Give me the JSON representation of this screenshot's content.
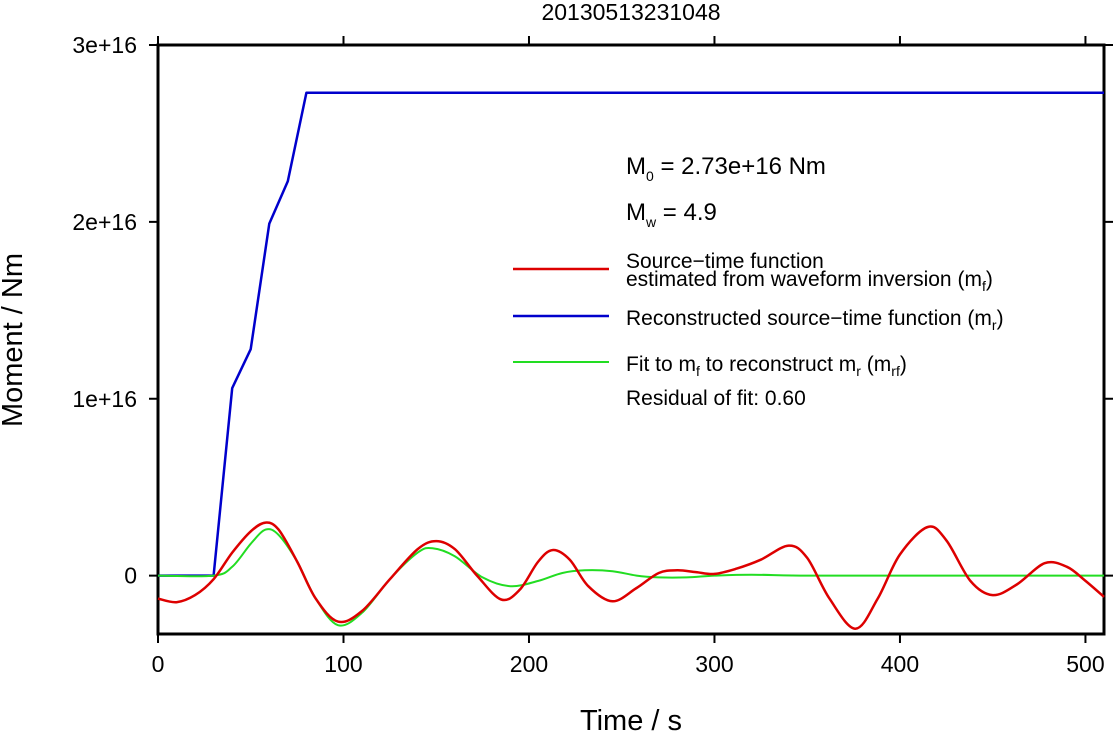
{
  "chart_data": {
    "type": "line",
    "title": "20130513231048",
    "xlabel": "Time / s",
    "ylabel": "Moment / Nm",
    "xlim": [
      0,
      510
    ],
    "ylim": [
      -3300000000000000.0,
      3e+16
    ],
    "x_ticks": [
      0,
      100,
      200,
      300,
      400,
      500
    ],
    "x_tick_labels": [
      "0",
      "100",
      "200",
      "300",
      "400",
      "500"
    ],
    "y_ticks": [
      0,
      1e+16,
      2e+16,
      3e+16
    ],
    "y_tick_labels": [
      "0",
      "1e+16",
      "2e+16",
      "3e+16"
    ],
    "grid": false,
    "legend_position": "right",
    "annotations": {
      "m0": {
        "lead": "M",
        "sub": "0",
        "rest": " = 2.73e+16 Nm"
      },
      "mw": {
        "lead": "M",
        "sub": "w",
        "rest": " = 4.9"
      },
      "residual": "Residual of fit: 0.60"
    },
    "legend": [
      {
        "key": "mf",
        "color": "#dd0000",
        "line1": "Source−time function",
        "line2": "estimated from waveform inversion (m",
        "sub": "f",
        "tail": ")"
      },
      {
        "key": "mr",
        "color": "#0000cc",
        "line1": "Reconstructed source−time function (m",
        "sub": "r",
        "tail": ")"
      },
      {
        "key": "mrf",
        "color": "#22dd22",
        "line1a": "Fit to m",
        "sub1": "f",
        "line1b": " to reconstruct m",
        "sub2": "r",
        "line1c": " (m",
        "sub3": "rf",
        "tail": ")"
      }
    ],
    "series": [
      {
        "key": "mr",
        "color": "#0000cc",
        "x": [
          0,
          30,
          40,
          50,
          60,
          70,
          80,
          510
        ],
        "y": [
          0,
          0,
          1.06e+16,
          1.28e+16,
          1.99e+16,
          2.23e+16,
          2.73e+16,
          2.73e+16
        ]
      },
      {
        "key": "mf",
        "color": "#dd0000",
        "x": [
          0,
          10,
          20,
          30,
          40,
          50,
          58,
          65,
          75,
          85,
          97,
          110,
          125,
          140,
          150,
          160,
          172,
          185,
          195,
          205,
          213,
          222,
          232,
          245,
          258,
          270,
          280,
          290,
          300,
          312,
          325,
          340,
          350,
          362,
          376,
          388,
          400,
          415,
          425,
          438,
          450,
          463,
          478,
          490,
          500,
          510
        ],
        "y": [
          -1300000000000000.0,
          -1500000000000000.0,
          -1100000000000000.0,
          -200000000000000.0,
          1300000000000000.0,
          2500000000000000.0,
          3000000000000000.0,
          2600000000000000.0,
          800000000000000.0,
          -1300000000000000.0,
          -2600000000000000.0,
          -2000000000000000.0,
          -200000000000000.0,
          1500000000000000.0,
          1950000000000000.0,
          1500000000000000.0,
          0,
          -1350000000000000.0,
          -800000000000000.0,
          800000000000000.0,
          1450000000000000.0,
          900000000000000.0,
          -600000000000000.0,
          -1450000000000000.0,
          -700000000000000.0,
          150000000000000.0,
          300000000000000.0,
          200000000000000.0,
          100000000000000.0,
          400000000000000.0,
          900000000000000.0,
          1700000000000000.0,
          1000000000000000.0,
          -1300000000000000.0,
          -3000000000000000.0,
          -1300000000000000.0,
          1200000000000000.0,
          2750000000000000.0,
          2000000000000000.0,
          -300000000000000.0,
          -1100000000000000.0,
          -500000000000000.0,
          700000000000000.0,
          500000000000000.0,
          -300000000000000.0,
          -1200000000000000.0
        ]
      },
      {
        "key": "mrf",
        "color": "#22dd22",
        "x": [
          0,
          30,
          40,
          50,
          58,
          65,
          75,
          85,
          97,
          110,
          125,
          140,
          148,
          160,
          175,
          190,
          205,
          218,
          230,
          245,
          258,
          270,
          285,
          300,
          320,
          350,
          400,
          450,
          510
        ],
        "y": [
          0,
          0,
          500000000000000.0,
          1800000000000000.0,
          2600000000000000.0,
          2300000000000000.0,
          800000000000000.0,
          -1300000000000000.0,
          -2800000000000000.0,
          -2100000000000000.0,
          -200000000000000.0,
          1300000000000000.0,
          1550000000000000.0,
          1100000000000000.0,
          -100000000000000.0,
          -600000000000000.0,
          -300000000000000.0,
          150000000000000.0,
          300000000000000.0,
          250000000000000.0,
          0,
          -100000000000000.0,
          -100000000000000.0,
          0,
          50000000000000.0,
          0,
          0,
          0,
          0
        ]
      }
    ]
  }
}
